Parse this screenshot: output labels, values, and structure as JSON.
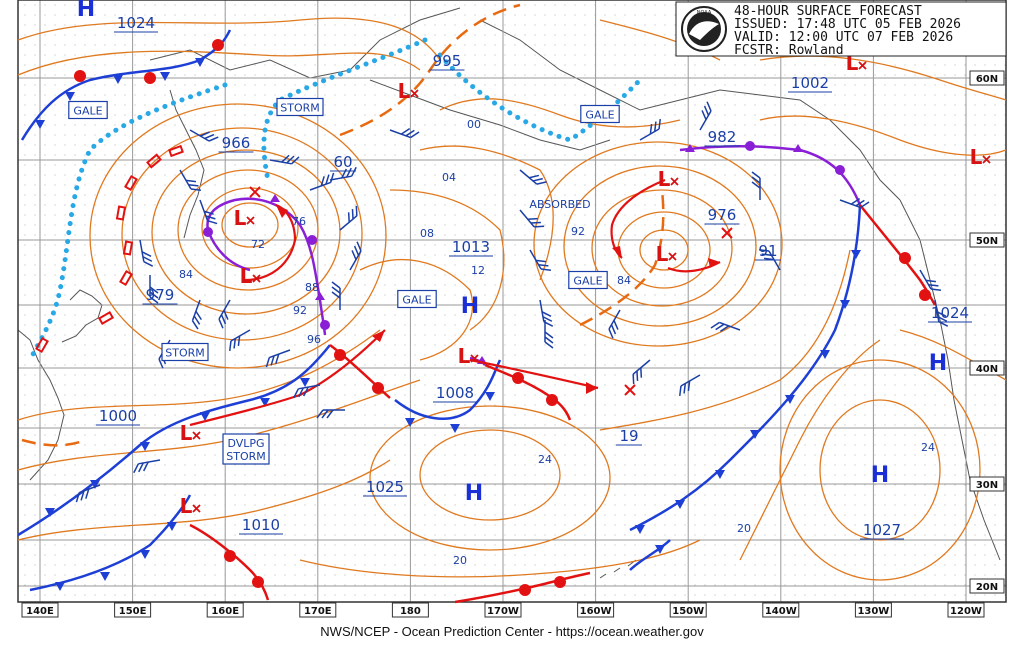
{
  "header": {
    "title": "48-HOUR SURFACE FORECAST",
    "issued": "ISSUED: 17:48 UTC 05 FEB 2026",
    "valid": "VALID:  12:00 UTC 07 FEB 2026",
    "forecaster": "FCSTR:  Rowland"
  },
  "logo_text": "NOAA",
  "footer": "NWS/NCEP - Ocean Prediction Center - https://ocean.weather.gov",
  "longitude_labels": [
    "140E",
    "150E",
    "160E",
    "170E",
    "180",
    "170W",
    "160W",
    "150W",
    "140W",
    "130W",
    "120W"
  ],
  "latitude_labels": [
    "60N",
    "50N",
    "40N",
    "30N",
    "20N"
  ],
  "pressure_labels": [
    {
      "text": "1024",
      "big": true
    },
    {
      "text": "995",
      "big": true
    },
    {
      "text": "1002",
      "big": true
    },
    {
      "text": "966",
      "big": true
    },
    {
      "text": "60",
      "big": true
    },
    {
      "text": "982",
      "big": true
    },
    {
      "text": "976",
      "big": true
    },
    {
      "text": "1013",
      "big": true
    },
    {
      "text": "91",
      "big": true
    },
    {
      "text": "979",
      "big": true
    },
    {
      "text": "1024",
      "big": true
    },
    {
      "text": "1000",
      "big": true
    },
    {
      "text": "1008",
      "big": true
    },
    {
      "text": "19",
      "big": true
    },
    {
      "text": "1025",
      "big": true
    },
    {
      "text": "1010",
      "big": true
    },
    {
      "text": "1027",
      "big": true
    },
    {
      "text": "00",
      "big": false
    },
    {
      "text": "04",
      "big": false
    },
    {
      "text": "08",
      "big": false
    },
    {
      "text": "12",
      "big": false
    },
    {
      "text": "92",
      "big": false
    },
    {
      "text": "84",
      "big": false
    },
    {
      "text": "72",
      "big": false
    },
    {
      "text": "76",
      "big": false
    },
    {
      "text": "88",
      "big": false
    },
    {
      "text": "92",
      "big": false
    },
    {
      "text": "96",
      "big": false
    },
    {
      "text": "84",
      "big": false
    },
    {
      "text": "24",
      "big": false
    },
    {
      "text": "20",
      "big": false
    },
    {
      "text": "24",
      "big": false
    },
    {
      "text": "20",
      "big": false
    }
  ],
  "warning_labels": [
    "GALE",
    "STORM",
    "GALE",
    "GALE",
    "GALE",
    "STORM",
    "DVLPG\nSTORM"
  ],
  "annotations": [
    "ABSORBED"
  ],
  "high_symbol": "H",
  "low_symbol": "L",
  "colors": {
    "isobar": "#e07a20",
    "grid": "#999999",
    "cold_front": "#1e3fd6",
    "warm_front": "#e31212",
    "occluded": "#8a1fd6",
    "trough": "#e86a10",
    "ice": "#29a8e6",
    "pressure_text": "#1a3fa6",
    "high": "#1a2fd6",
    "low": "#d61212",
    "barb": "#1a3fa6"
  }
}
